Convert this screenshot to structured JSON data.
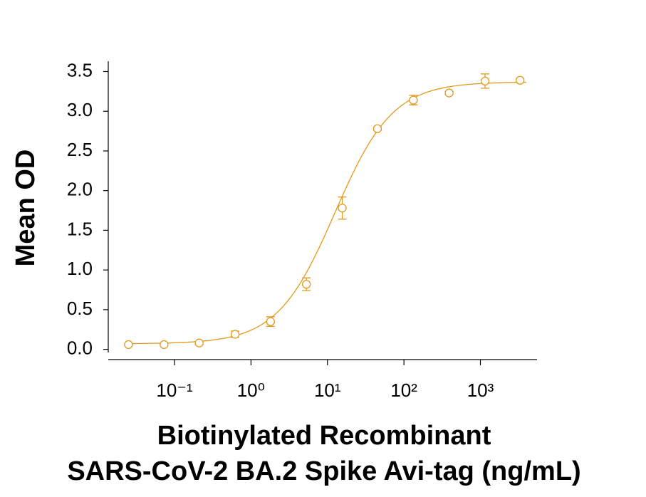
{
  "chart_data": {
    "type": "scatter",
    "xlabel": [
      "Biotinylated Recombinant",
      "SARS-CoV-2 BA.2 Spike Avi-tag (ng/mL)"
    ],
    "ylabel": "Mean OD",
    "x": [
      0.025,
      0.073,
      0.21,
      0.62,
      1.8,
      5.3,
      15.6,
      45,
      133,
      390,
      1150,
      3300
    ],
    "series": [
      {
        "color": "#e29a1c",
        "values": [
          0.06,
          0.06,
          0.08,
          0.19,
          0.35,
          0.82,
          1.78,
          2.78,
          3.14,
          3.23,
          3.38,
          3.39
        ],
        "errors": [
          0.01,
          0.01,
          0.02,
          0.04,
          0.06,
          0.08,
          0.14,
          0.02,
          0.06,
          0.02,
          0.09,
          0.02
        ]
      }
    ],
    "fit": {
      "bottom": 0.07,
      "top": 3.37,
      "ec50": 12.5,
      "hill": 1.15
    },
    "xlog": true,
    "xlim": [
      0.0136,
      5500
    ],
    "xticks": [
      {
        "value": 0.1,
        "label": "10⁻¹"
      },
      {
        "value": 1,
        "label": "10⁰"
      },
      {
        "value": 10,
        "label": "10¹"
      },
      {
        "value": 100,
        "label": "10²"
      },
      {
        "value": 1000,
        "label": "10³"
      }
    ],
    "ylim": [
      -0.12,
      3.63
    ],
    "yticks": [
      {
        "value": 0,
        "label": "0.0"
      },
      {
        "value": 0.5,
        "label": "0.5"
      },
      {
        "value": 1,
        "label": "1.0"
      },
      {
        "value": 1.5,
        "label": "1.5"
      },
      {
        "value": 2,
        "label": "2.0"
      },
      {
        "value": 2.5,
        "label": "2.5"
      },
      {
        "value": 3,
        "label": "3.0"
      },
      {
        "value": 3.5,
        "label": "3.5"
      }
    ]
  }
}
